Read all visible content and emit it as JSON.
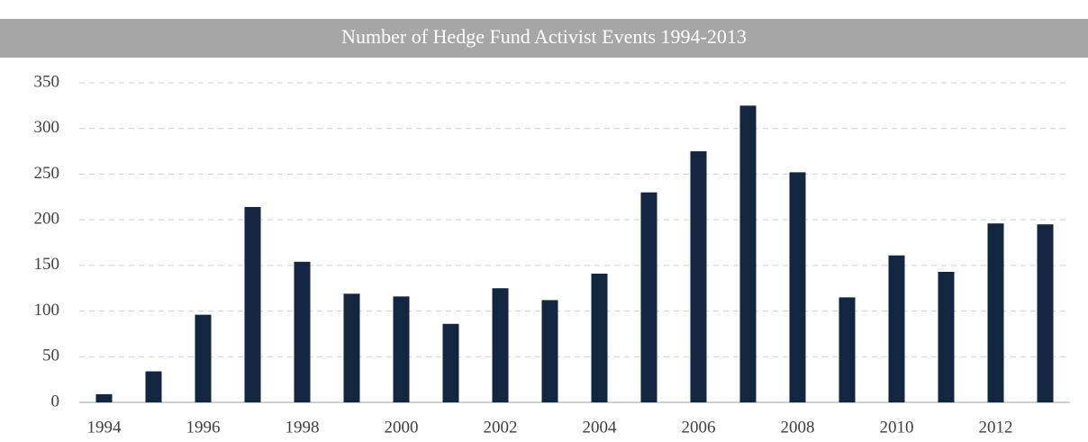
{
  "chart_data": {
    "type": "bar",
    "title": "Number of Hedge Fund Activist Events 1994-2013",
    "categories": [
      "1994",
      null,
      "1996",
      null,
      "1998",
      null,
      "2000",
      null,
      "2002",
      null,
      "2004",
      null,
      "2006",
      null,
      "2008",
      null,
      "2010",
      null,
      "2012",
      null
    ],
    "values": [
      9,
      34,
      96,
      214,
      154,
      119,
      116,
      86,
      125,
      112,
      141,
      230,
      275,
      325,
      252,
      115,
      161,
      143,
      196,
      195
    ],
    "color": "#13263f",
    "ylim": [
      0,
      350
    ],
    "yticks": [
      0,
      50,
      100,
      150,
      200,
      250,
      300,
      350
    ],
    "grid": true
  }
}
